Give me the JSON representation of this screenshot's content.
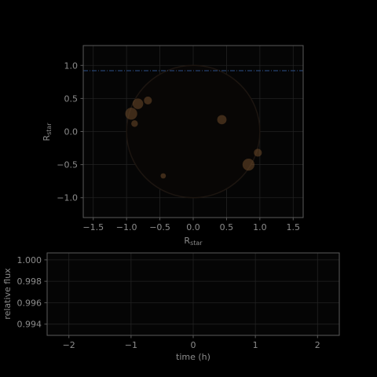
{
  "colors": {
    "background": "#000000",
    "axes_face": "#050505",
    "spine": "#5a5a5a",
    "grid": "#222222",
    "text": "#8c8c8c",
    "transit_line": "#2d4f86",
    "spot": "#6e4a2a"
  },
  "chart_data": [
    {
      "type": "scatter",
      "title": "",
      "xlabel": "R",
      "xlabel_sub": "star",
      "ylabel": "R",
      "ylabel_sub": "star",
      "xlim": [
        -1.65,
        1.65
      ],
      "ylim": [
        -1.3,
        1.3
      ],
      "xticks": [
        -1.5,
        -1.0,
        -0.5,
        0.0,
        0.5,
        1.0,
        1.5
      ],
      "xtick_labels": [
        "−1.5",
        "−1.0",
        "−0.5",
        "0.0",
        "0.5",
        "1.0",
        "1.5"
      ],
      "yticks": [
        1.0,
        0.5,
        0.0,
        -0.5,
        -1.0
      ],
      "ytick_labels": [
        "1.0",
        "0.5",
        "0.0",
        "−0.5",
        "−1.0"
      ],
      "grid": true,
      "star_radius": 1.0,
      "transit_path_y": 0.92,
      "spots": [
        {
          "x": -0.93,
          "y": 0.27,
          "r": 0.09
        },
        {
          "x": -0.83,
          "y": 0.42,
          "r": 0.08
        },
        {
          "x": -0.68,
          "y": 0.47,
          "r": 0.06
        },
        {
          "x": -0.88,
          "y": 0.12,
          "r": 0.05
        },
        {
          "x": 0.43,
          "y": 0.18,
          "r": 0.07
        },
        {
          "x": 0.97,
          "y": -0.32,
          "r": 0.06
        },
        {
          "x": 0.83,
          "y": -0.5,
          "r": 0.09
        },
        {
          "x": -0.45,
          "y": -0.67,
          "r": 0.04
        }
      ]
    },
    {
      "type": "line",
      "title": "",
      "xlabel": "time (h)",
      "ylabel": "relative flux",
      "xlim": [
        -2.35,
        2.35
      ],
      "ylim": [
        0.99295,
        1.00065
      ],
      "xticks": [
        -2,
        -1,
        0,
        1,
        2
      ],
      "xtick_labels": [
        "−2",
        "−1",
        "0",
        "1",
        "2"
      ],
      "yticks": [
        1.0,
        0.998,
        0.996,
        0.994
      ],
      "ytick_labels": [
        "1.000",
        "0.998",
        "0.996",
        "0.994"
      ],
      "grid": true,
      "series": []
    }
  ]
}
